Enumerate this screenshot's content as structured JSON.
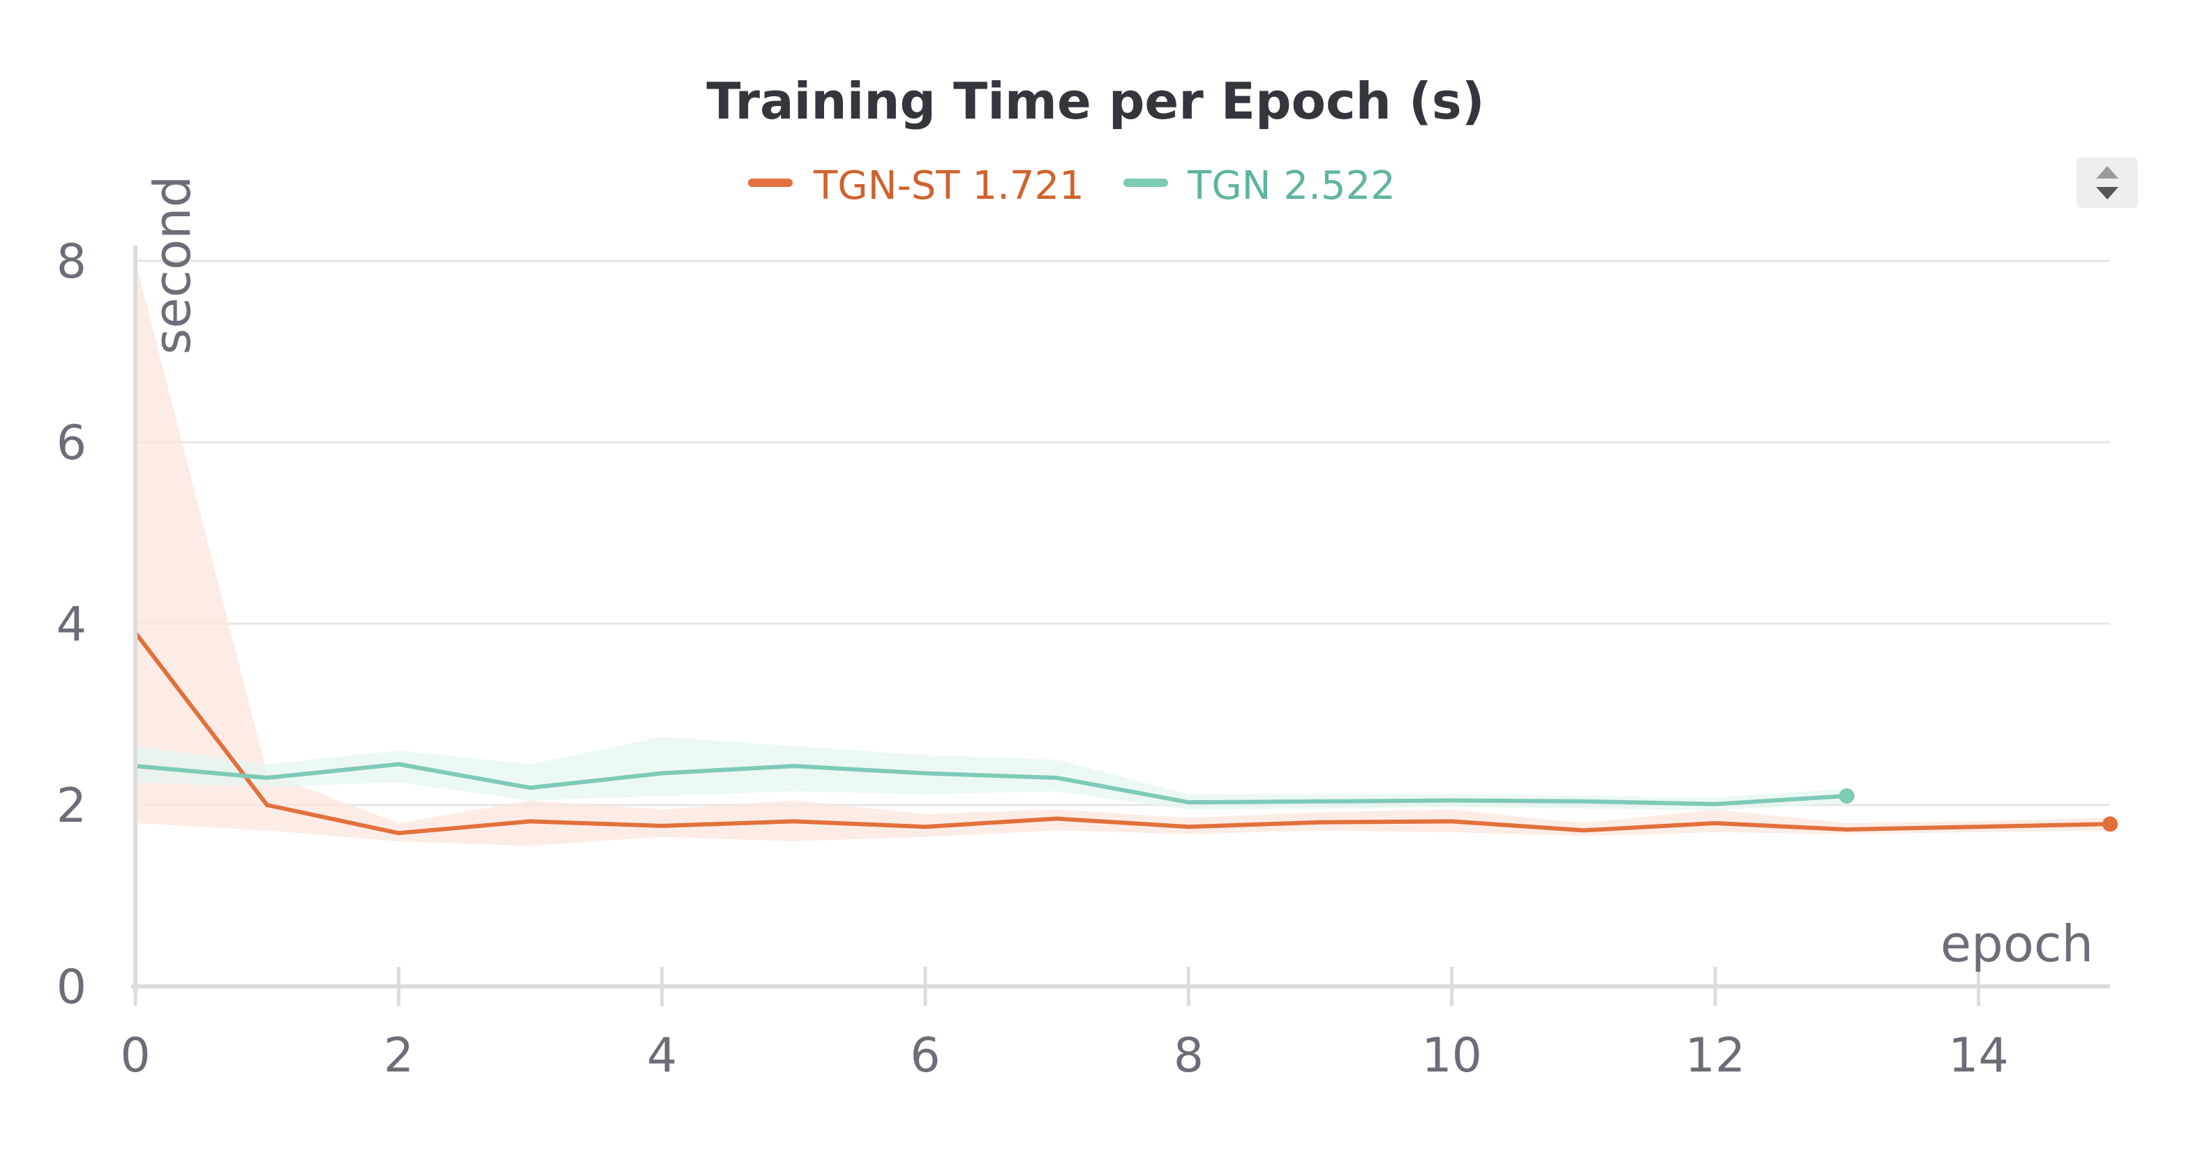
{
  "chart_data": {
    "type": "line",
    "title": "Training Time per Epoch (s)",
    "xlabel": "epoch",
    "ylabel": "second",
    "xlim": [
      0,
      15
    ],
    "ylim": [
      0,
      8
    ],
    "x_ticks": [
      0,
      2,
      4,
      6,
      8,
      10,
      12,
      14
    ],
    "y_ticks": [
      0,
      2,
      4,
      6,
      8
    ],
    "grid": true,
    "legend_position": "top-center",
    "series": [
      {
        "name": "TGN-ST",
        "legend_value": "1.721",
        "color": "#e2703c",
        "band_color": "#fbe6dc",
        "x": [
          0,
          1,
          2,
          3,
          4,
          5,
          6,
          7,
          8,
          9,
          10,
          11,
          12,
          13,
          14,
          15
        ],
        "y": [
          3.9,
          2.0,
          1.69,
          1.82,
          1.77,
          1.82,
          1.76,
          1.85,
          1.76,
          1.81,
          1.82,
          1.72,
          1.8,
          1.73,
          1.76,
          1.79
        ],
        "y_min": [
          1.8,
          1.72,
          1.6,
          1.55,
          1.65,
          1.6,
          1.65,
          1.72,
          1.68,
          1.72,
          1.7,
          1.66,
          1.7,
          1.68,
          1.7,
          1.72
        ],
        "y_max": [
          8.0,
          2.35,
          1.8,
          2.05,
          1.95,
          2.05,
          1.9,
          1.95,
          1.86,
          1.92,
          1.95,
          1.8,
          1.95,
          1.8,
          1.82,
          1.86
        ]
      },
      {
        "name": "TGN",
        "legend_value": "2.522",
        "color": "#7dcab7",
        "band_color": "#e5f5f0",
        "x": [
          0,
          1,
          2,
          3,
          4,
          5,
          6,
          7,
          8,
          9,
          10,
          11,
          12,
          13
        ],
        "y": [
          2.43,
          2.3,
          2.45,
          2.19,
          2.35,
          2.43,
          2.35,
          2.3,
          2.03,
          2.04,
          2.05,
          2.04,
          2.01,
          2.1
        ],
        "y_min": [
          2.25,
          2.2,
          2.25,
          2.05,
          2.1,
          2.15,
          2.12,
          2.15,
          1.95,
          1.96,
          1.98,
          1.96,
          1.94,
          2.02
        ],
        "y_max": [
          2.65,
          2.45,
          2.6,
          2.45,
          2.75,
          2.65,
          2.55,
          2.5,
          2.12,
          2.12,
          2.12,
          2.1,
          2.08,
          2.18
        ]
      }
    ]
  },
  "controls": {
    "sort_icon": "sort-up-down-icon"
  }
}
